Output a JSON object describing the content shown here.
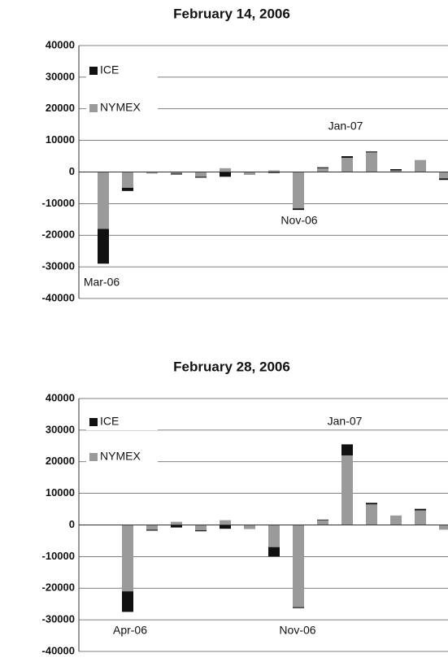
{
  "chart_data": [
    {
      "type": "bar",
      "stacked": true,
      "title": "February 14, 2006",
      "categories": [
        null,
        null,
        null,
        null,
        null,
        null,
        null,
        null,
        null,
        null,
        null,
        null,
        null,
        null,
        null
      ],
      "series": [
        {
          "name": "NYMEX",
          "color": "#9a9a9a",
          "values": [
            -18000,
            -5000,
            -500,
            -500,
            -1500,
            1200,
            -700,
            500,
            -11500,
            1200,
            4500,
            6200,
            500,
            3800,
            -2000
          ]
        },
        {
          "name": "ICE",
          "color": "#111111",
          "values": [
            -11000,
            -1000,
            0,
            -300,
            -300,
            -1500,
            -100,
            -300,
            -500,
            300,
            500,
            300,
            400,
            0,
            -500
          ]
        }
      ],
      "annotations": [
        "Mar-06",
        "Nov-06",
        "Jan-07"
      ],
      "ylim": [
        -40000,
        40000
      ],
      "yticks": [
        -40000,
        -30000,
        -20000,
        -10000,
        0,
        10000,
        20000,
        30000,
        40000
      ],
      "grid": true,
      "legend": "upper left"
    },
    {
      "type": "bar",
      "stacked": true,
      "title": "February 28, 2006",
      "categories": [
        null,
        null,
        null,
        null,
        null,
        null,
        null,
        null,
        null,
        null,
        null,
        null,
        null,
        null,
        null
      ],
      "series": [
        {
          "name": "NYMEX",
          "color": "#9a9a9a",
          "values": [
            null,
            -21000,
            -1500,
            1000,
            -1700,
            1500,
            -1300,
            -7000,
            -26000,
            1500,
            22000,
            6500,
            3000,
            4600,
            -1500
          ]
        },
        {
          "name": "ICE",
          "color": "#111111",
          "values": [
            null,
            -6500,
            -300,
            -800,
            -300,
            -1200,
            0,
            -3000,
            -300,
            200,
            3500,
            500,
            0,
            500,
            0
          ]
        }
      ],
      "annotations": [
        "Apr-06",
        "Nov-06",
        "Jan-07"
      ],
      "ylim": [
        -40000,
        40000
      ],
      "yticks": [
        -40000,
        -30000,
        -20000,
        -10000,
        0,
        10000,
        20000,
        30000,
        40000
      ],
      "grid": true,
      "legend": "upper left"
    }
  ]
}
